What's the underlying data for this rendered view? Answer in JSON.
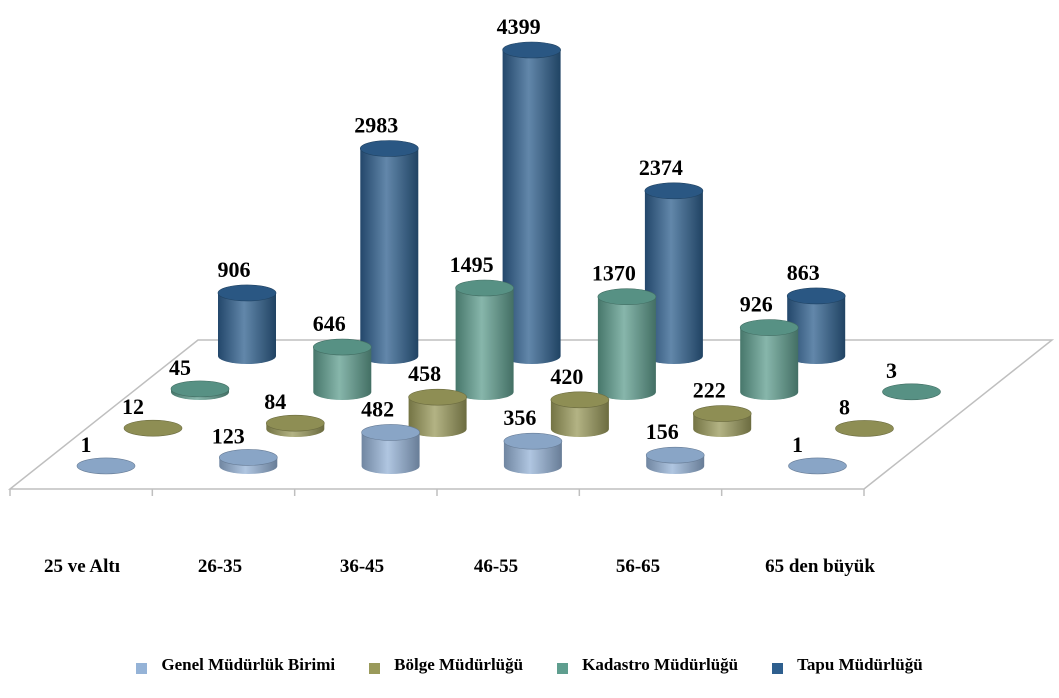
{
  "chart_data": {
    "type": "bar",
    "title": "",
    "xlabel": "",
    "ylabel": "",
    "categories": [
      "25 ve Altı",
      "26-35",
      "36-45",
      "46-55",
      "56-65",
      "65 den büyük"
    ],
    "series": [
      {
        "name": "Genel Müdürlük Birimi",
        "color": "#95B3D7",
        "values": [
          1,
          123,
          482,
          356,
          156,
          1
        ]
      },
      {
        "name": "Bölge Müdürlüğü",
        "color": "#9A9A5B",
        "values": [
          12,
          84,
          458,
          420,
          222,
          8
        ]
      },
      {
        "name": "Kadastro Müdürlüğü",
        "color": "#5F9E8F",
        "values": [
          45,
          646,
          1495,
          1370,
          926,
          3
        ]
      },
      {
        "name": "Tapu Müdürlüğü",
        "color": "#2E5F8E",
        "values": [
          906,
          2983,
          4399,
          2374,
          863,
          null
        ]
      }
    ],
    "data_labels": [
      [
        "1",
        "123",
        "482",
        "356",
        "156",
        "1"
      ],
      [
        "12",
        "84",
        "458",
        "420",
        "222",
        "8"
      ],
      [
        "45",
        "646",
        "1495",
        "1370",
        "926",
        "3"
      ],
      [
        "906",
        "2983",
        "4399",
        "2374",
        "863",
        ""
      ]
    ],
    "ylim": [
      0,
      4399
    ],
    "grid": false,
    "legend_position": "bottom",
    "chart_style": "3d-cylinder"
  }
}
